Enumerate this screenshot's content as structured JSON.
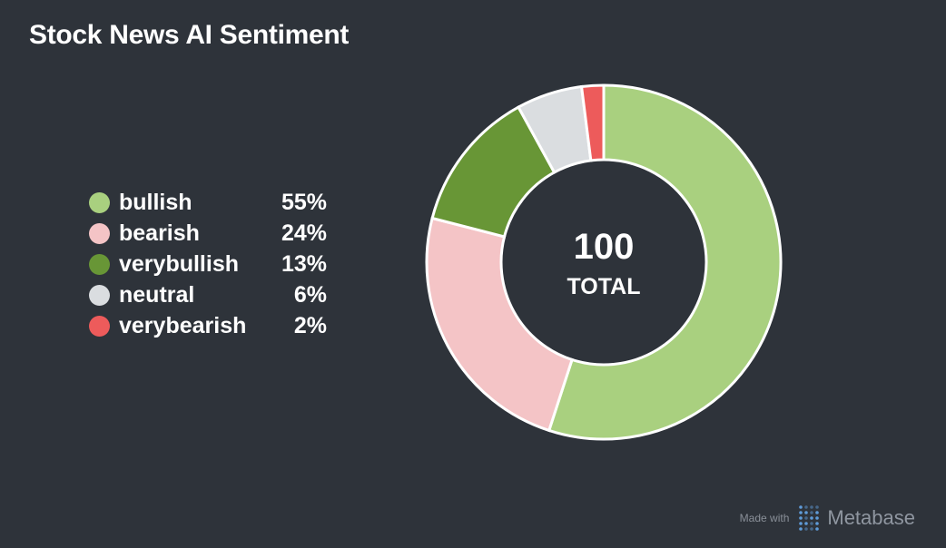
{
  "title": "Stock News AI Sentiment",
  "chart_data": {
    "type": "pie",
    "title": "Stock News AI Sentiment",
    "categories": [
      "bullish",
      "bearish",
      "verybullish",
      "neutral",
      "verybearish"
    ],
    "values": [
      55,
      24,
      13,
      6,
      2
    ],
    "percent_labels": [
      "55%",
      "24%",
      "13%",
      "6%",
      "2%"
    ],
    "colors": [
      "#a9d07f",
      "#f4c4c6",
      "#689636",
      "#dadde0",
      "#ed5b5b"
    ],
    "total": "100",
    "total_label": "TOTAL",
    "legend_position": "left"
  },
  "footer": {
    "made_with": "Made with",
    "brand": "Metabase"
  }
}
